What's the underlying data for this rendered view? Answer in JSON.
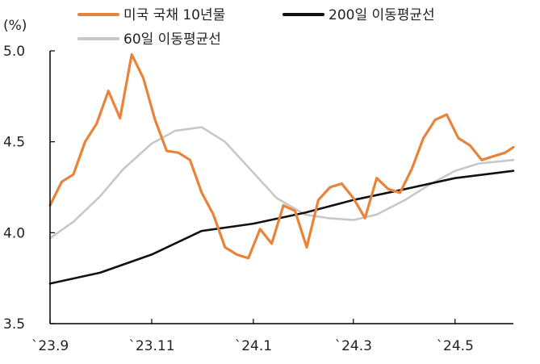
{
  "chart_data": {
    "type": "line",
    "ylabel": "(%)",
    "ylim": [
      3.5,
      5.0
    ],
    "yticks": [
      "5.0",
      "4.5",
      "4.0",
      "3.5"
    ],
    "xticks": [
      "`23.9",
      "`23.11",
      "`24.1",
      "`24.3",
      "`24.5"
    ],
    "grid": false,
    "legend_position": "top",
    "series": [
      {
        "name": "미국 국채 10년물",
        "color": "#E8843A",
        "x": [
          "2023-09-01",
          "2023-09-08",
          "2023-09-15",
          "2023-09-22",
          "2023-09-29",
          "2023-10-06",
          "2023-10-13",
          "2023-10-20",
          "2023-10-27",
          "2023-11-03",
          "2023-11-10",
          "2023-11-17",
          "2023-11-24",
          "2023-12-01",
          "2023-12-08",
          "2023-12-15",
          "2023-12-22",
          "2023-12-29",
          "2024-01-05",
          "2024-01-12",
          "2024-01-19",
          "2024-01-26",
          "2024-02-02",
          "2024-02-09",
          "2024-02-16",
          "2024-02-23",
          "2024-03-01",
          "2024-03-08",
          "2024-03-15",
          "2024-03-22",
          "2024-03-29",
          "2024-04-05",
          "2024-04-12",
          "2024-04-19",
          "2024-04-26",
          "2024-05-03",
          "2024-05-10",
          "2024-05-17",
          "2024-05-24",
          "2024-05-31",
          "2024-06-05"
        ],
        "values": [
          4.15,
          4.28,
          4.32,
          4.5,
          4.6,
          4.78,
          4.63,
          4.98,
          4.85,
          4.62,
          4.45,
          4.44,
          4.4,
          4.22,
          4.1,
          3.92,
          3.88,
          3.86,
          4.02,
          3.94,
          4.15,
          4.12,
          3.92,
          4.18,
          4.25,
          4.27,
          4.19,
          4.08,
          4.3,
          4.24,
          4.22,
          4.35,
          4.52,
          4.62,
          4.65,
          4.52,
          4.48,
          4.4,
          4.42,
          4.44,
          4.47
        ]
      },
      {
        "name": "200일 이동평균선",
        "color": "#111111",
        "x": [
          "2023-09-01",
          "2023-10-01",
          "2023-11-01",
          "2023-12-01",
          "2024-01-01",
          "2024-02-01",
          "2024-03-01",
          "2024-04-01",
          "2024-05-01",
          "2024-06-05"
        ],
        "values": [
          3.72,
          3.78,
          3.88,
          4.01,
          4.05,
          4.11,
          4.18,
          4.24,
          4.3,
          4.34
        ]
      },
      {
        "name": "60일 이동평균선",
        "color": "#C8C8C8",
        "x": [
          "2023-09-01",
          "2023-09-15",
          "2023-10-01",
          "2023-10-15",
          "2023-11-01",
          "2023-11-15",
          "2023-12-01",
          "2023-12-15",
          "2024-01-01",
          "2024-01-15",
          "2024-02-01",
          "2024-02-15",
          "2024-03-01",
          "2024-03-15",
          "2024-04-01",
          "2024-04-15",
          "2024-05-01",
          "2024-05-15",
          "2024-06-05"
        ],
        "values": [
          3.97,
          4.06,
          4.2,
          4.35,
          4.49,
          4.56,
          4.58,
          4.5,
          4.33,
          4.19,
          4.1,
          4.08,
          4.07,
          4.1,
          4.18,
          4.26,
          4.34,
          4.38,
          4.4
        ]
      }
    ]
  }
}
